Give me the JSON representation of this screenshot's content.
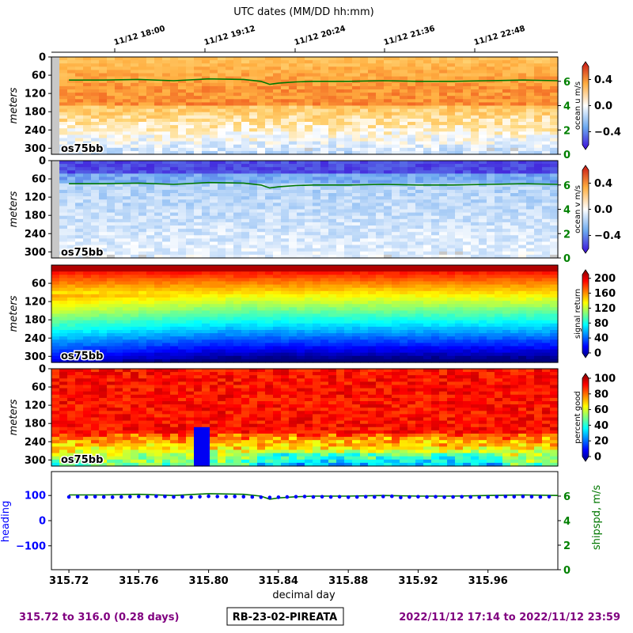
{
  "top_axis_title": "UTC dates (MM/DD hh:mm)",
  "top_ticks": [
    "11/12 18:00",
    "11/12 19:12",
    "11/12 20:24",
    "11/12 21:36",
    "11/12 22:48"
  ],
  "panel_tag": "os75bb",
  "depth_label": "meters",
  "depth_ticks": [
    "0",
    "60",
    "120",
    "180",
    "240",
    "300"
  ],
  "depth_ticks_lower": [
    "60",
    "120",
    "180",
    "240",
    "300"
  ],
  "bottom_xlabel": "decimal day",
  "footer": {
    "left": "315.72 to 316.0 (0.28 days)",
    "center": "RB-23-02-PIREATA",
    "right": "2022/11/12 17:14 to 2022/11/12 23:59"
  },
  "colors": {
    "ship_speed": "#007700",
    "heading": "#0000ff",
    "footer_text": "#800080",
    "right_tick_green": "#008000"
  },
  "colorbars": [
    {
      "label": "ocean u m/s",
      "ticks": [
        "0.4",
        "0.0",
        "−0.4"
      ],
      "colormap": "blue-white-red"
    },
    {
      "label": "ocean v m/s",
      "ticks": [
        "0.4",
        "0.0",
        "−0.4"
      ],
      "colormap": "blue-white-red"
    },
    {
      "label": "signal return",
      "ticks": [
        "200",
        "160",
        "120",
        "80",
        "40",
        "0"
      ],
      "colormap": "jet"
    },
    {
      "label": "percent good",
      "ticks": [
        "100",
        "80",
        "60",
        "40",
        "20",
        "0"
      ],
      "colormap": "jet"
    }
  ],
  "chart_data": [
    {
      "type": "heatmap",
      "variable": "ocean u",
      "units": "m/s",
      "x_range": [
        315.71,
        316.0
      ],
      "depth_range": [
        0,
        320
      ],
      "color_range": [
        -0.6,
        0.6
      ],
      "overlay": {
        "name": "shipspd",
        "units": "m/s",
        "right_axis_ticks": [
          "6",
          "4",
          "2",
          "0"
        ],
        "approx_value": 6.0
      }
    },
    {
      "type": "heatmap",
      "variable": "ocean v",
      "units": "m/s",
      "x_range": [
        315.71,
        316.0
      ],
      "depth_range": [
        0,
        320
      ],
      "color_range": [
        -0.6,
        0.6
      ],
      "overlay": {
        "name": "shipspd",
        "units": "m/s",
        "right_axis_ticks": [
          "6",
          "4",
          "2",
          "0"
        ],
        "approx_value": 6.0
      }
    },
    {
      "type": "heatmap",
      "variable": "signal return",
      "x_range": [
        315.71,
        316.0
      ],
      "depth_range": [
        0,
        320
      ],
      "color_range": [
        0,
        210
      ]
    },
    {
      "type": "heatmap",
      "variable": "percent good",
      "x_range": [
        315.71,
        316.0
      ],
      "depth_range": [
        0,
        320
      ],
      "color_range": [
        0,
        100
      ]
    },
    {
      "type": "line",
      "xlabel": "decimal day",
      "x_ticks": [
        "315.72",
        "315.76",
        "315.80",
        "315.84",
        "315.88",
        "315.92",
        "315.96"
      ],
      "ylabel_left": "heading",
      "y_left_ticks": [
        "100",
        "0",
        "−100"
      ],
      "ylim_left": [
        -195,
        195
      ],
      "ylabel_right": "shipspd, m/s",
      "y_right_ticks": [
        "6",
        "4",
        "2",
        "0"
      ],
      "ylim_right": [
        0,
        8
      ],
      "series": [
        {
          "name": "heading",
          "style": "points",
          "x": [
            315.72,
            315.725,
            315.73,
            315.735,
            315.74,
            315.745,
            315.75,
            315.755,
            315.76,
            315.765,
            315.77,
            315.775,
            315.78,
            315.785,
            315.79,
            315.795,
            315.8,
            315.805,
            315.81,
            315.815,
            315.82,
            315.825,
            315.83,
            315.835,
            315.84,
            315.845,
            315.85,
            315.855,
            315.86,
            315.865,
            315.87,
            315.875,
            315.88,
            315.885,
            315.89,
            315.895,
            315.9,
            315.905,
            315.91,
            315.915,
            315.92,
            315.925,
            315.93,
            315.935,
            315.94,
            315.945,
            315.95,
            315.955,
            315.96,
            315.965,
            315.97,
            315.975,
            315.98,
            315.985,
            315.99,
            315.995
          ],
          "y": [
            94,
            95,
            93,
            95,
            94,
            93,
            94,
            95,
            96,
            95,
            97,
            96,
            94,
            95,
            93,
            95,
            97,
            96,
            95,
            96,
            95,
            94,
            93,
            92,
            93,
            94,
            95,
            96,
            94,
            95,
            94,
            95,
            93,
            94,
            95,
            94,
            96,
            97,
            92,
            94,
            95,
            94,
            95,
            93,
            94,
            95,
            94,
            93,
            94,
            95,
            96,
            95,
            96,
            95,
            94,
            95
          ]
        },
        {
          "name": "shipspd",
          "style": "line",
          "x": [
            315.72,
            315.74,
            315.76,
            315.78,
            315.8,
            315.82,
            315.83,
            315.835,
            315.84,
            315.85,
            315.86,
            315.88,
            315.9,
            315.92,
            315.94,
            315.96,
            315.98,
            316.0
          ],
          "y": [
            6.1,
            6.1,
            6.15,
            6.05,
            6.2,
            6.15,
            6.0,
            5.75,
            5.85,
            5.95,
            6.0,
            6.0,
            6.05,
            6.0,
            6.0,
            6.05,
            6.1,
            6.05
          ]
        }
      ]
    }
  ]
}
